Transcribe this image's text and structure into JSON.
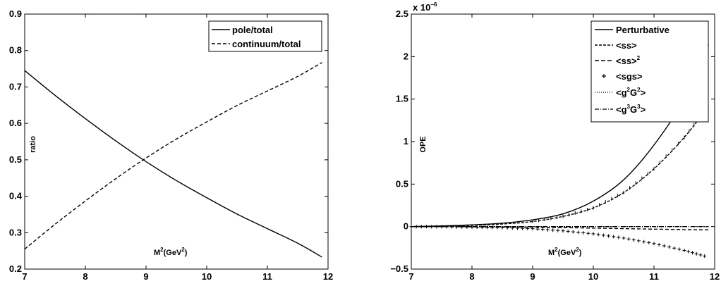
{
  "chart_data": [
    {
      "type": "line",
      "xlabel": "M",
      "xlabel_sup": "2",
      "xlabel_unit": "(GeV",
      "xlabel_unit_sup": "2",
      "xlabel_close": ")",
      "ylabel": "ratio",
      "xlim": [
        7,
        12
      ],
      "ylim": [
        0.2,
        0.9
      ],
      "xticks": [
        "7",
        "8",
        "9",
        "10",
        "11",
        "12"
      ],
      "yticks": [
        "0.2",
        "0.3",
        "0.4",
        "0.5",
        "0.6",
        "0.7",
        "0.8",
        "0.9"
      ],
      "grid": false,
      "legend_position": "top-right",
      "series": [
        {
          "name": "pole/total",
          "style": "solid",
          "x": [
            7.0,
            7.5,
            8.0,
            8.5,
            9.0,
            9.5,
            10.0,
            10.5,
            11.0,
            11.5,
            11.9
          ],
          "y": [
            0.745,
            0.677,
            0.613,
            0.552,
            0.495,
            0.443,
            0.396,
            0.351,
            0.311,
            0.271,
            0.233
          ]
        },
        {
          "name": "continuum/total",
          "style": "dashed",
          "x": [
            7.0,
            7.5,
            8.0,
            8.5,
            9.0,
            9.5,
            10.0,
            10.5,
            11.0,
            11.5,
            11.9
          ],
          "y": [
            0.255,
            0.323,
            0.387,
            0.448,
            0.505,
            0.557,
            0.604,
            0.649,
            0.689,
            0.729,
            0.767
          ]
        }
      ]
    },
    {
      "type": "line",
      "xlabel": "M",
      "xlabel_sup": "2",
      "xlabel_unit": "(GeV",
      "xlabel_unit_sup": "2",
      "xlabel_close": ")",
      "ylabel": "OPE",
      "yscale_note": "x 10",
      "yscale_exp": "−6",
      "xlim": [
        7,
        12
      ],
      "ylim": [
        -0.5,
        2.5
      ],
      "xticks": [
        "7",
        "8",
        "9",
        "10",
        "11",
        "12"
      ],
      "yticks": [
        "−0.5",
        "0",
        "0.5",
        "1",
        "1.5",
        "2",
        "2.5"
      ],
      "grid": false,
      "legend_position": "top-right",
      "x": [
        7.0,
        7.5,
        8.0,
        8.5,
        9.0,
        9.5,
        10.0,
        10.5,
        11.0,
        11.5,
        11.9
      ],
      "series": [
        {
          "name": "Perturbative",
          "style": "solid",
          "y": [
            0.0,
            0.008,
            0.02,
            0.04,
            0.08,
            0.15,
            0.3,
            0.55,
            0.96,
            1.5,
            2.14
          ]
        },
        {
          "name": "<ss>",
          "name_sup": "",
          "style": "dash-cross",
          "y": [
            0.0,
            0.005,
            0.015,
            0.03,
            0.06,
            0.12,
            0.22,
            0.4,
            0.68,
            1.05,
            1.42
          ]
        },
        {
          "name": "<ss>",
          "name_sup": "2",
          "style": "dashed",
          "y": [
            0.0,
            0.0,
            -0.002,
            -0.004,
            -0.007,
            -0.012,
            -0.018,
            -0.024,
            -0.03,
            -0.035,
            -0.038
          ]
        },
        {
          "name": "<sgs>",
          "name_sup": "",
          "style": "plus",
          "y": [
            0.0,
            -0.002,
            -0.006,
            -0.012,
            -0.025,
            -0.05,
            -0.085,
            -0.135,
            -0.2,
            -0.28,
            -0.36
          ]
        },
        {
          "name_parts": [
            "<g",
            "2",
            "G",
            "2",
            ">"
          ],
          "style": "dotted",
          "y": [
            0.0,
            0.0,
            0.0,
            0.0,
            0.0,
            0.0,
            0.0,
            0.0,
            0.0,
            0.0,
            0.0
          ]
        },
        {
          "name_parts": [
            "<g",
            "3",
            "G",
            "3",
            ">"
          ],
          "style": "dashdot",
          "y": [
            0.0,
            0.0,
            0.0,
            0.0,
            0.0,
            0.0,
            0.0,
            0.0,
            0.0,
            0.0,
            0.0
          ]
        }
      ]
    }
  ]
}
